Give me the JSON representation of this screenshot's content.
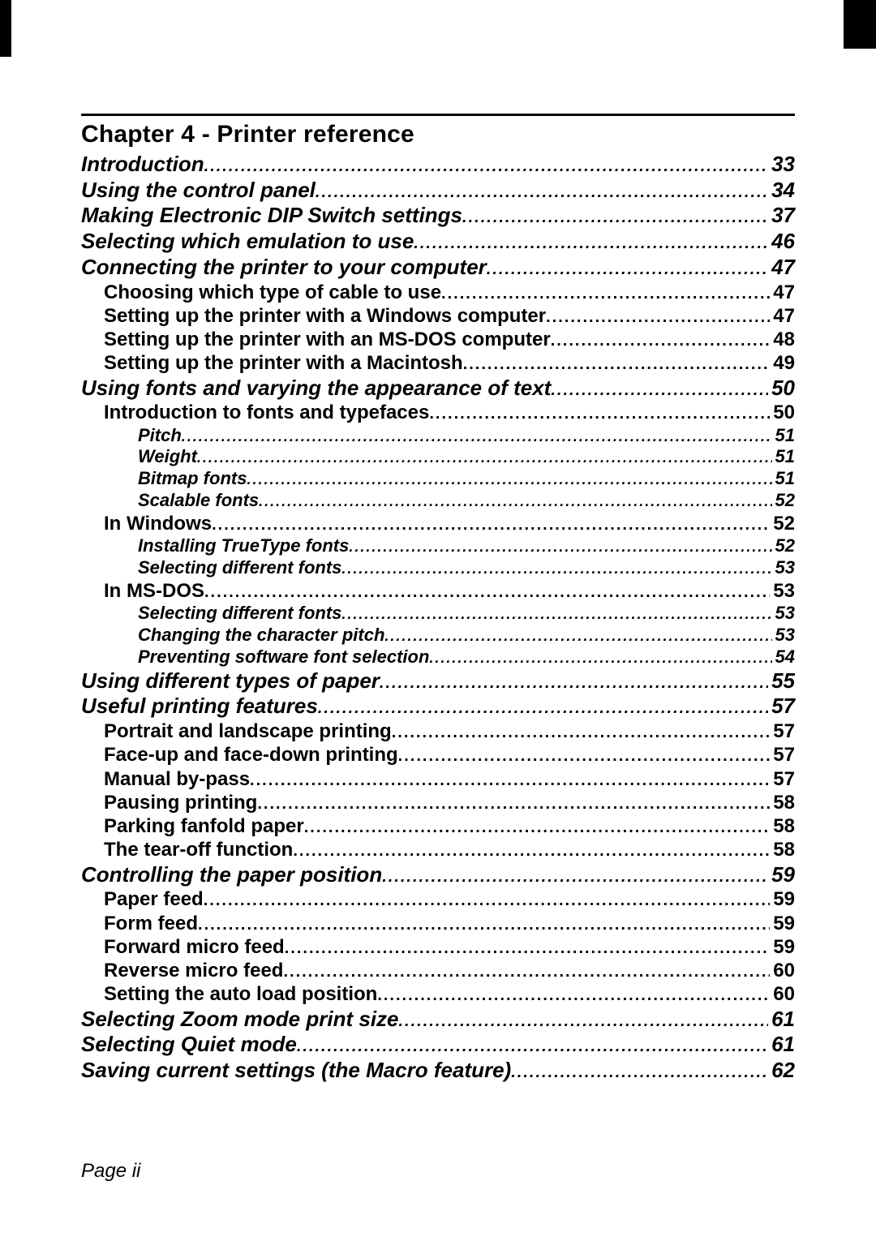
{
  "chapter_title": "Chapter 4  - Printer reference",
  "footer": "Page ii",
  "toc": [
    {
      "level": 0,
      "label": "Introduction",
      "page": "33"
    },
    {
      "level": 0,
      "label": "Using the control panel",
      "page": "34"
    },
    {
      "level": 0,
      "label": "Making Electronic DIP Switch settings",
      "page": "37"
    },
    {
      "level": 0,
      "label": "Selecting which emulation to use",
      "page": "46"
    },
    {
      "level": 0,
      "label": "Connecting the printer to your computer",
      "page": "47"
    },
    {
      "level": 1,
      "label": "Choosing which type of cable to use",
      "page": "47"
    },
    {
      "level": 1,
      "label": "Setting up the printer with a Windows computer",
      "page": "47"
    },
    {
      "level": 1,
      "label": "Setting up the printer with an MS-DOS computer",
      "page": "48"
    },
    {
      "level": 1,
      "label": "Setting up the printer with a Macintosh",
      "page": "49"
    },
    {
      "level": 0,
      "label": "Using fonts and varying the appearance of text",
      "page": "50"
    },
    {
      "level": 1,
      "label": "Introduction to fonts and typefaces",
      "page": "50"
    },
    {
      "level": 2,
      "label": "Pitch",
      "page": "51"
    },
    {
      "level": 2,
      "label": "Weight",
      "page": "51"
    },
    {
      "level": 2,
      "label": "Bitmap fonts",
      "page": "51"
    },
    {
      "level": 2,
      "label": "Scalable fonts",
      "page": "52"
    },
    {
      "level": 1,
      "label": "In Windows",
      "page": "52"
    },
    {
      "level": 2,
      "label": "Installing TrueType fonts",
      "page": "52"
    },
    {
      "level": 2,
      "label": "Selecting different fonts",
      "page": "53"
    },
    {
      "level": 1,
      "label": "In MS-DOS",
      "page": "53"
    },
    {
      "level": 2,
      "label": "Selecting different fonts",
      "page": "53"
    },
    {
      "level": 2,
      "label": "Changing the character pitch",
      "page": "53"
    },
    {
      "level": 2,
      "label": "Preventing software font selection",
      "page": "54"
    },
    {
      "level": 0,
      "label": "Using different types of paper",
      "page": "55"
    },
    {
      "level": 0,
      "label": "Useful printing features",
      "page": "57"
    },
    {
      "level": 1,
      "label": "Portrait and landscape printing",
      "page": "57"
    },
    {
      "level": 1,
      "label": "Face-up and face-down printing",
      "page": "57"
    },
    {
      "level": 1,
      "label": "Manual by-pass",
      "page": "57"
    },
    {
      "level": 1,
      "label": "Pausing printing",
      "page": "58"
    },
    {
      "level": 1,
      "label": "Parking fanfold paper",
      "page": "58"
    },
    {
      "level": 1,
      "label": "The tear-off function",
      "page": "58"
    },
    {
      "level": 0,
      "label": "Controlling the paper position",
      "page": "59"
    },
    {
      "level": 1,
      "label": "Paper feed",
      "page": "59"
    },
    {
      "level": 1,
      "label": "Form feed",
      "page": "59"
    },
    {
      "level": 1,
      "label": "Forward micro feed",
      "page": "59"
    },
    {
      "level": 1,
      "label": "Reverse micro feed",
      "page": "60"
    },
    {
      "level": 1,
      "label": "Setting the auto load position",
      "page": "60"
    },
    {
      "level": 0,
      "label": "Selecting Zoom mode print size",
      "page": "61"
    },
    {
      "level": 0,
      "label": "Selecting Quiet mode",
      "page": "61"
    },
    {
      "level": 0,
      "label": "Saving current settings (the Macro feature)",
      "page": "62"
    }
  ]
}
